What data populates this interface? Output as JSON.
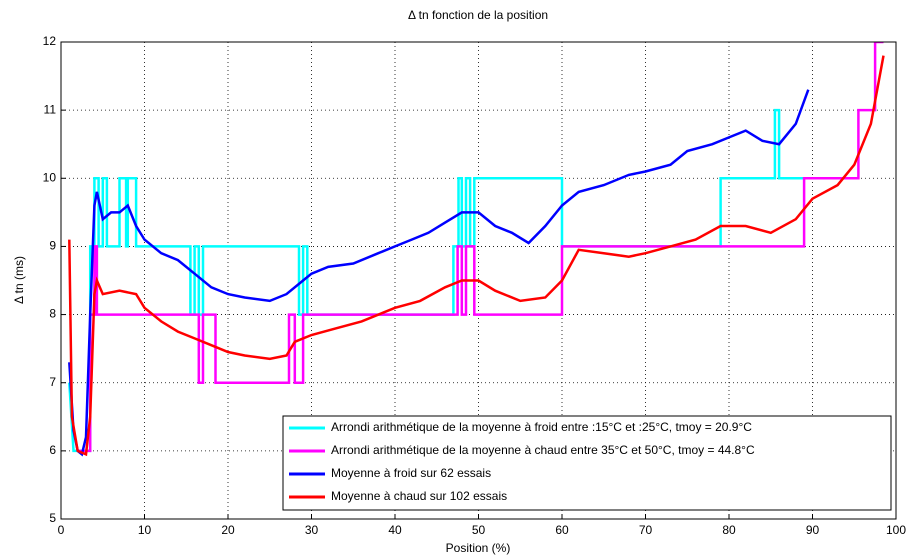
{
  "chart_data": {
    "type": "line",
    "title": "Δ tn fonction de la position",
    "x_label": "Position (%)",
    "y_label": "Δ tn (ms)",
    "xlim": [
      0,
      100
    ],
    "xticks": [
      0,
      10,
      20,
      30,
      40,
      50,
      60,
      70,
      80,
      90,
      100
    ],
    "ylim": [
      5,
      12
    ],
    "yticks": [
      5,
      6,
      7,
      8,
      9,
      10,
      11,
      12
    ],
    "grid": true,
    "legend": "lower right",
    "series": [
      {
        "name": "Arrondi arithmétique de la moyenne à froid entre :15°C et :25°C, tmoy = 20.9°C",
        "color": "#00ffff",
        "x": [
          1,
          1.5,
          3,
          3.5,
          3.5,
          4,
          4,
          4.5,
          4.5,
          5,
          5,
          5.5,
          5.5,
          7,
          7,
          7.8,
          7.8,
          8,
          8,
          9,
          9,
          15.5,
          15.5,
          16,
          16,
          16.5,
          16.5,
          17,
          17,
          28.5,
          28.5,
          29,
          29,
          29.5,
          29.5,
          47,
          47,
          47.6,
          47.6,
          48,
          48,
          48.5,
          48.5,
          49,
          49,
          49.5,
          49.5,
          60,
          60,
          79,
          79,
          85.5,
          85.5,
          86,
          86,
          89
        ],
        "values": [
          7,
          6,
          6,
          6,
          9,
          9,
          10,
          10,
          9,
          9,
          10,
          10,
          9,
          9,
          10,
          10,
          9,
          9,
          10,
          10,
          9,
          9,
          8,
          8,
          9,
          9,
          8,
          8,
          9,
          9,
          8,
          8,
          9,
          9,
          8,
          8,
          9,
          9,
          10,
          10,
          9,
          9,
          10,
          10,
          9,
          9,
          10,
          10,
          9,
          9,
          10,
          10,
          11,
          11,
          10,
          10
        ]
      },
      {
        "name": "Arrondi arithmétique de la moyenne à chaud entre 35°C et 50°C, tmoy = 44.8°C",
        "color": "#ff00ff",
        "x": [
          2,
          3.5,
          3.5,
          4,
          4,
          4.3,
          4.3,
          16.5,
          16.5,
          17,
          17,
          18.5,
          18.5,
          27.3,
          27.3,
          28,
          28,
          29,
          29,
          47.5,
          47.5,
          48,
          48,
          48.5,
          48.5,
          49.5,
          49.5,
          60,
          60,
          89,
          89,
          95.5,
          95.5,
          97.5,
          97.5,
          98.5
        ],
        "values": [
          6,
          6,
          8,
          8,
          9,
          9,
          8,
          8,
          7,
          7,
          8,
          8,
          7,
          7,
          8,
          8,
          7,
          7,
          8,
          8,
          9,
          9,
          8,
          8,
          9,
          9,
          8,
          8,
          9,
          9,
          10,
          10,
          11,
          11,
          12,
          12
        ]
      },
      {
        "name": "Moyenne à froid sur 62 essais",
        "color": "#0000ff",
        "x": [
          1,
          1.5,
          2,
          2.5,
          3,
          3.5,
          4,
          4.3,
          5,
          6,
          7,
          8,
          9,
          10,
          12,
          14,
          16,
          18,
          20,
          22,
          25,
          27,
          29,
          30,
          32,
          35,
          38,
          40,
          42,
          44,
          46,
          48,
          50,
          52,
          54,
          56,
          58,
          60,
          62,
          65,
          68,
          70,
          73,
          75,
          78,
          80,
          82,
          84,
          86,
          88,
          89.5
        ],
        "values": [
          7.3,
          6.3,
          6,
          5.95,
          6.2,
          8,
          9.6,
          9.8,
          9.4,
          9.5,
          9.5,
          9.6,
          9.3,
          9.1,
          8.9,
          8.8,
          8.6,
          8.4,
          8.3,
          8.25,
          8.2,
          8.3,
          8.5,
          8.6,
          8.7,
          8.75,
          8.9,
          9,
          9.1,
          9.2,
          9.35,
          9.5,
          9.5,
          9.3,
          9.2,
          9.05,
          9.3,
          9.6,
          9.8,
          9.9,
          10.05,
          10.1,
          10.2,
          10.4,
          10.5,
          10.6,
          10.7,
          10.55,
          10.5,
          10.8,
          11.3
        ]
      },
      {
        "name": "Moyenne à chaud sur 102  essais",
        "color": "#ff0000",
        "x": [
          1,
          1.3,
          2,
          3,
          3.5,
          4,
          4.3,
          5,
          7,
          9,
          10,
          12,
          14,
          16,
          18,
          20,
          22,
          25,
          27,
          28,
          30,
          33,
          36,
          40,
          43,
          46,
          48,
          50,
          52,
          55,
          58,
          60,
          62,
          65,
          68,
          70,
          73,
          76,
          79,
          82,
          85,
          88,
          90,
          93,
          95,
          97,
          98.5
        ],
        "values": [
          9.1,
          6.5,
          6,
          5.95,
          6.5,
          8.3,
          8.5,
          8.3,
          8.35,
          8.3,
          8.1,
          7.9,
          7.75,
          7.65,
          7.55,
          7.45,
          7.4,
          7.35,
          7.4,
          7.6,
          7.7,
          7.8,
          7.9,
          8.1,
          8.2,
          8.4,
          8.5,
          8.5,
          8.35,
          8.2,
          8.25,
          8.5,
          8.95,
          8.9,
          8.85,
          8.9,
          9,
          9.1,
          9.3,
          9.3,
          9.2,
          9.4,
          9.7,
          9.9,
          10.2,
          10.8,
          11.8
        ]
      }
    ]
  }
}
